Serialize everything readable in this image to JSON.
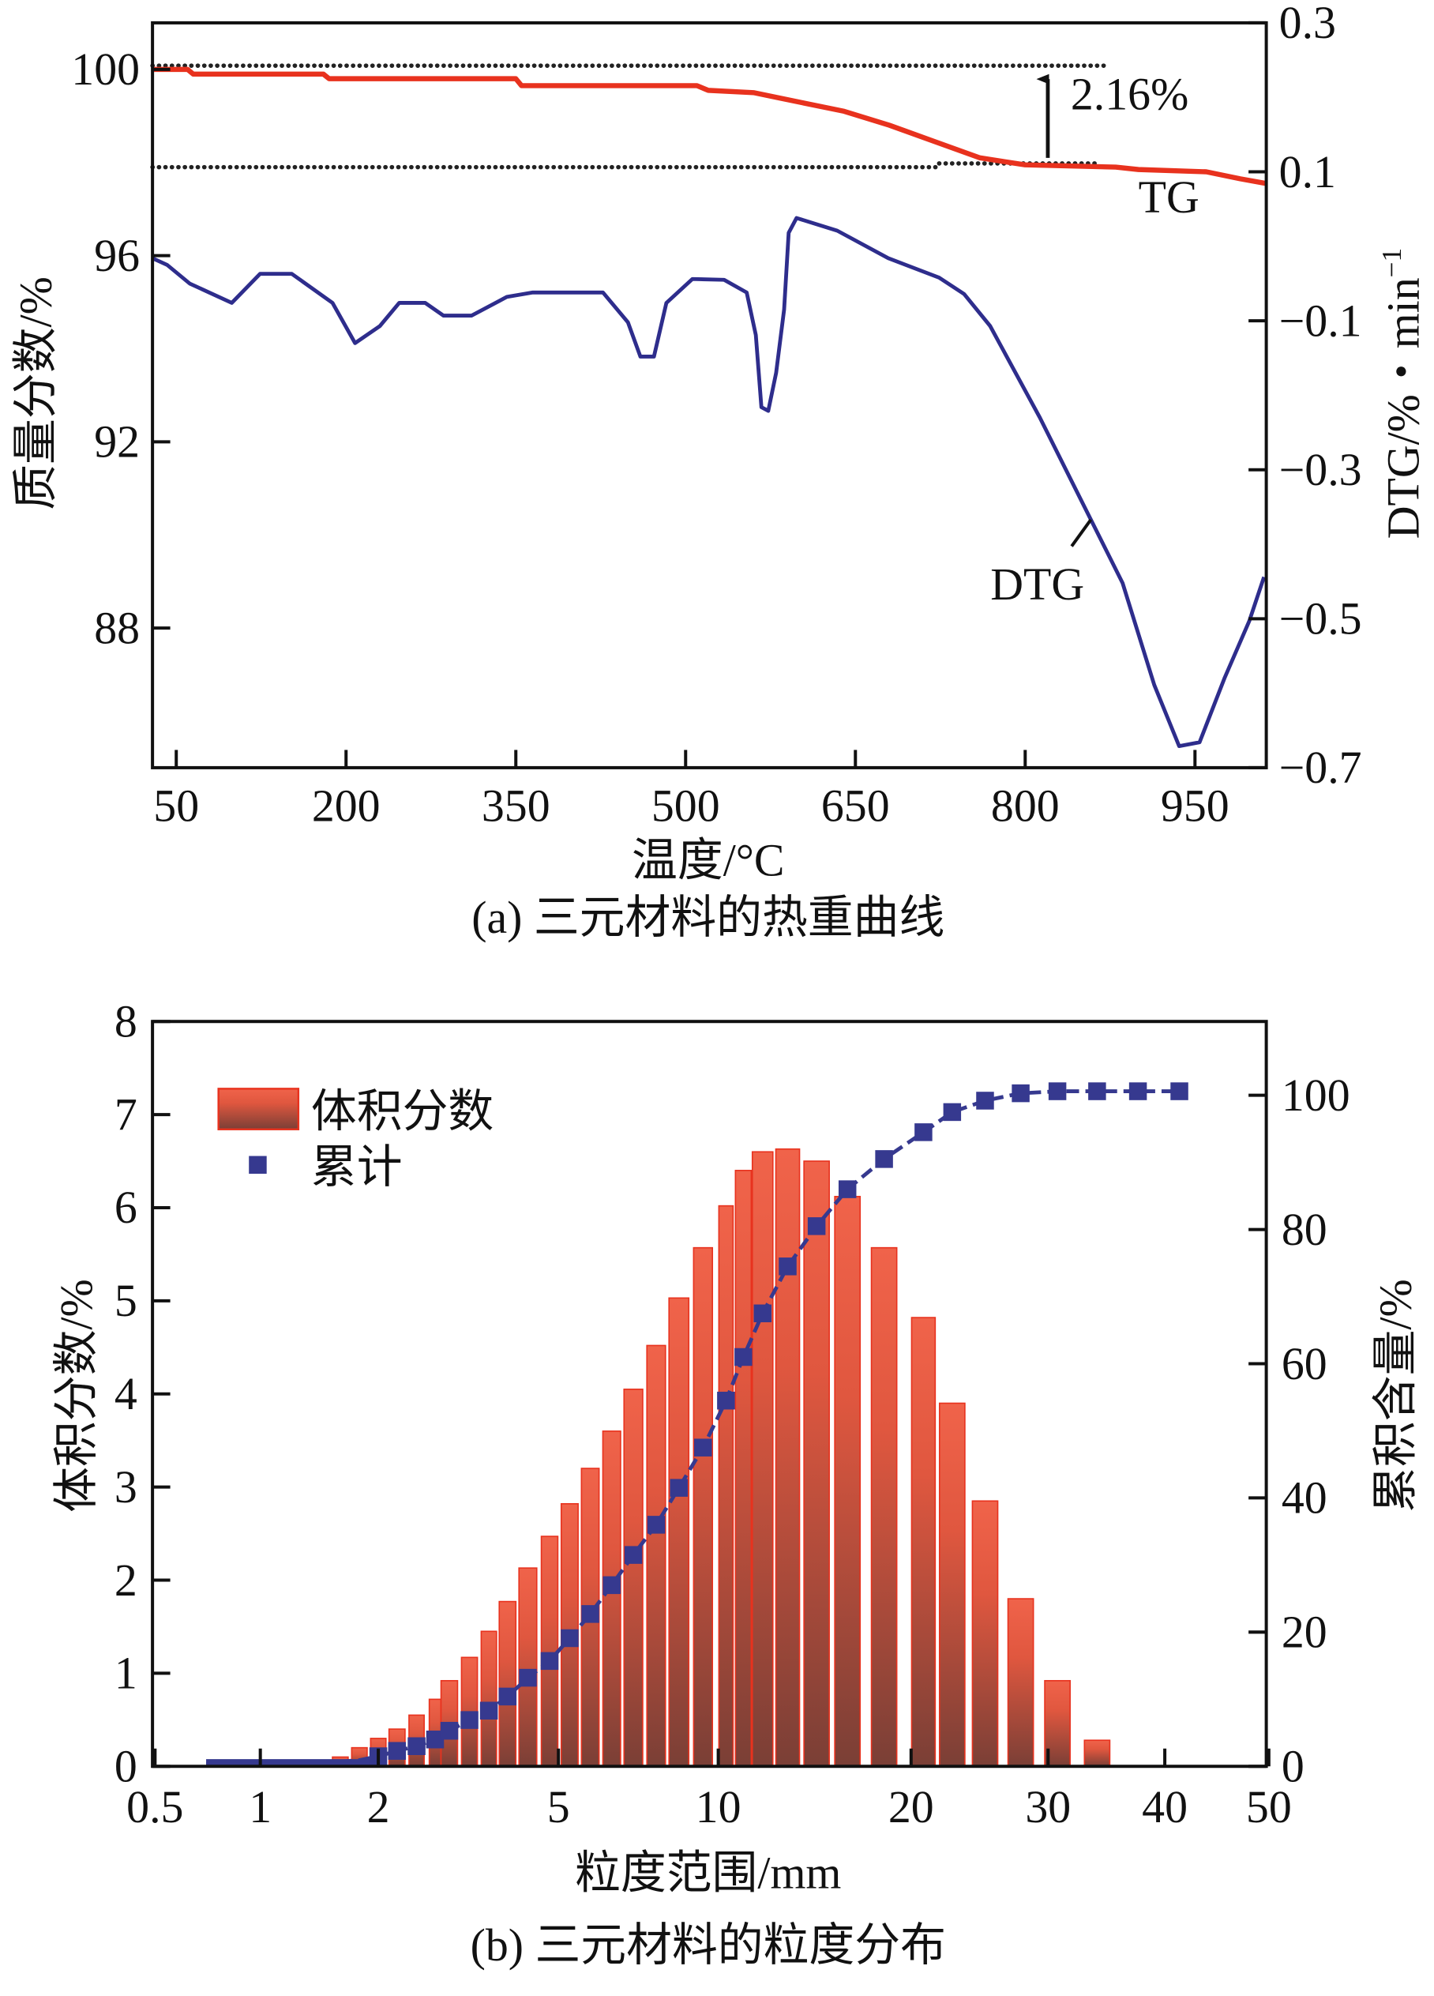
{
  "chart_data": [
    {
      "type": "line",
      "caption": "(a) 三元材料的热重曲线",
      "xlabel": "温度/°C",
      "ylabel_left": "质量分数/%",
      "ylabel_right": "DTG/%・min",
      "ylabel_right_sup": "−1",
      "xlim": [
        29,
        1013
      ],
      "ylim_left": [
        85,
        101
      ],
      "ylim_right": [
        -0.7,
        0.3
      ],
      "xticks": [
        50,
        200,
        350,
        500,
        650,
        800,
        950
      ],
      "yticks_left": [
        88,
        92,
        96,
        100
      ],
      "yticks_right": [
        -0.7,
        -0.5,
        -0.3,
        -0.1,
        0.1,
        0.3
      ],
      "ytick_labels_right": [
        "−0.7",
        "−0.5",
        "−0.3",
        "−0.1",
        "0.1",
        "0.3"
      ],
      "grid": false,
      "colors": {
        "TG": "#e8321e",
        "DTG": "#2e2d8c",
        "reference": "#222222"
      },
      "series": [
        {
          "name": "TG",
          "axis": "left",
          "x": [
            29,
            60,
            65,
            180,
            185,
            350,
            355,
            510,
            520,
            560,
            600,
            640,
            680,
            720,
            760,
            800,
            880,
            900,
            960,
            990,
            1013
          ],
          "y": [
            100,
            100,
            99.9,
            99.9,
            99.8,
            99.8,
            99.65,
            99.65,
            99.55,
            99.5,
            99.3,
            99.1,
            98.8,
            98.45,
            98.1,
            97.95,
            97.9,
            97.85,
            97.8,
            97.65,
            97.55
          ]
        },
        {
          "name": "DTG",
          "axis": "right",
          "x": [
            29,
            42,
            62,
            99,
            124,
            152,
            188,
            208,
            230,
            247,
            270,
            286,
            311,
            342,
            365,
            427,
            449,
            460,
            472,
            483,
            506,
            534,
            554,
            562,
            567,
            573,
            580,
            587,
            591,
            598,
            634,
            679,
            724,
            746,
            769,
            813,
            858,
            886,
            914,
            936,
            954,
            976,
            998,
            1011
          ],
          "y": [
            -0.016,
            -0.025,
            -0.05,
            -0.076,
            -0.037,
            -0.037,
            -0.076,
            -0.13,
            -0.107,
            -0.076,
            -0.076,
            -0.093,
            -0.093,
            -0.068,
            -0.062,
            -0.062,
            -0.102,
            -0.148,
            -0.148,
            -0.076,
            -0.044,
            -0.045,
            -0.062,
            -0.119,
            -0.216,
            -0.221,
            -0.17,
            -0.085,
            0.018,
            0.038,
            0.021,
            -0.016,
            -0.042,
            -0.064,
            -0.107,
            -0.23,
            -0.367,
            -0.452,
            -0.589,
            -0.671,
            -0.666,
            -0.58,
            -0.503,
            -0.444
          ]
        }
      ],
      "reference_lines": [
        {
          "y": 100.08,
          "x": [
            29,
            870
          ]
        },
        {
          "y": 97.9,
          "x": [
            29,
            724
          ]
        },
        {
          "y": 97.98,
          "x": [
            724,
            866
          ]
        }
      ],
      "annotations": {
        "mass_loss": {
          "text": "2.16%",
          "x": 820,
          "y_from": 98.1,
          "y_to": 99.9
        },
        "tg_label": {
          "text": "TG",
          "x": 900,
          "y": 97.2
        },
        "dtg_label": {
          "text": "DTG",
          "x": 785,
          "y": -0.43,
          "point_x": 858,
          "point_y": -0.367
        }
      }
    },
    {
      "type": "bar",
      "caption": "(b) 三元材料的粒度分布",
      "xlabel": "粒度范围/mm",
      "ylabel_left": "体积分数/%",
      "ylabel_right": "累积含量/%",
      "xticks": [
        0.5,
        1,
        2,
        5,
        10,
        20,
        30,
        40,
        50
      ],
      "ylim_left": [
        0,
        8
      ],
      "ylim_right": [
        0,
        111
      ],
      "yticks_left": [
        0,
        1,
        2,
        3,
        4,
        5,
        6,
        7,
        8
      ],
      "yticks_right": [
        0,
        20,
        40,
        60,
        80,
        100
      ],
      "grid": false,
      "legend": {
        "position": "top-left",
        "bar_label": "体积分数",
        "marker_label": "累计"
      },
      "colors": {
        "bar_top": "#f0634a",
        "bar_bottom": "#7a3f36",
        "bar_edge": "#e8321e",
        "cumulative": "#36398f"
      },
      "series": [
        {
          "name": "体积分数",
          "kind": "bar",
          "x": [
            1.42,
            1.6,
            1.79,
            2.0,
            2.2,
            2.43,
            2.67,
            2.87,
            3.18,
            3.51,
            3.86,
            4.28,
            4.78,
            5.25,
            5.74,
            6.3,
            6.92,
            7.64,
            8.43,
            9.36,
            10.4,
            11.3,
            12.3,
            13.6,
            15.1,
            16.7,
            18.6,
            20.9,
            23.0,
            25.4,
            28.0,
            30.8,
            34.2
          ],
          "values": [
            0.05,
            0.1,
            0.2,
            0.3,
            0.4,
            0.55,
            0.72,
            0.92,
            1.17,
            1.45,
            1.77,
            2.13,
            2.47,
            2.82,
            3.2,
            3.6,
            4.05,
            4.52,
            5.03,
            5.57,
            6.02,
            6.4,
            6.6,
            6.63,
            6.5,
            6.12,
            5.57,
            4.82,
            3.9,
            2.85,
            1.8,
            0.92,
            0.28
          ]
        },
        {
          "name": "累计",
          "kind": "line-marker",
          "x": [
            0.7,
            1.0,
            1.42,
            1.79,
            2.0,
            2.2,
            2.43,
            2.67,
            2.87,
            3.18,
            3.51,
            3.86,
            4.28,
            4.78,
            5.25,
            5.74,
            6.3,
            6.92,
            7.64,
            8.43,
            9.36,
            10.4,
            11.3,
            12.3,
            13.6,
            15.1,
            16.7,
            18.6,
            20.9,
            23.0,
            25.4,
            28.0,
            30.8,
            34.2,
            37.7,
            41.4
          ],
          "values": [
            0.4,
            0.4,
            0.5,
            0.9,
            1.5,
            2.3,
            3.0,
            4.0,
            5.3,
            6.9,
            8.3,
            10.4,
            13.2,
            15.7,
            19.1,
            22.7,
            27,
            31.5,
            36,
            41.5,
            47.5,
            54.5,
            61,
            67.5,
            74.5,
            80.5,
            86,
            90.5,
            94.5,
            97.5,
            99.2,
            100.3,
            100.6,
            100.6,
            100.6,
            100.6
          ]
        }
      ]
    }
  ]
}
